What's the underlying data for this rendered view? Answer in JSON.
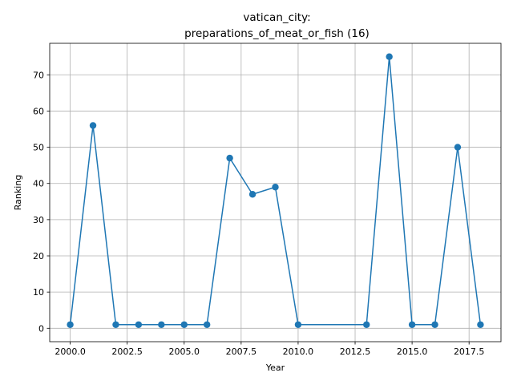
{
  "chart_data": {
    "type": "line",
    "title_lines": [
      "vatican_city:",
      "preparations_of_meat_or_fish (16)"
    ],
    "xlabel": "Year",
    "ylabel": "Ranking",
    "xlim": [
      1999.1,
      2018.9
    ],
    "ylim": [
      -3.7,
      78.7
    ],
    "xticks": [
      2000,
      2002.5,
      2005,
      2007.5,
      2010,
      2012.5,
      2015,
      2017.5
    ],
    "xtick_labels": [
      "2000.0",
      "2002.5",
      "2005.0",
      "2007.5",
      "2010.0",
      "2012.5",
      "2015.0",
      "2017.5"
    ],
    "yticks": [
      0,
      10,
      20,
      30,
      40,
      50,
      60,
      70
    ],
    "ytick_labels": [
      "0",
      "10",
      "20",
      "30",
      "40",
      "50",
      "60",
      "70"
    ],
    "grid": true,
    "color": "#1f77b4",
    "series": [
      {
        "x": [
          2000,
          2001,
          2002,
          2003,
          2004,
          2005,
          2006,
          2007,
          2008,
          2009,
          2010,
          2013,
          2014,
          2015,
          2016,
          2017,
          2018
        ],
        "values": [
          1,
          56,
          1,
          1,
          1,
          1,
          1,
          47,
          37,
          39,
          1,
          1,
          75,
          1,
          1,
          50,
          1
        ]
      }
    ]
  }
}
